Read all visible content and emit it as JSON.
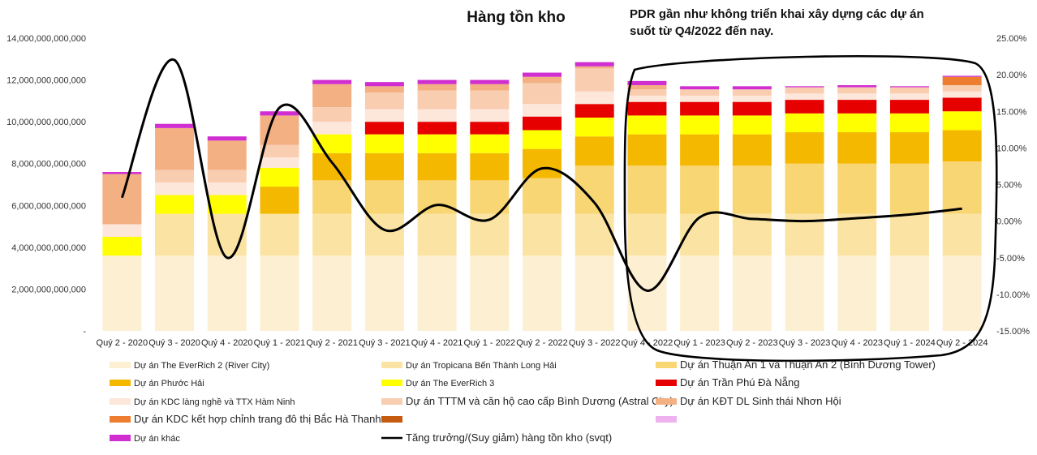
{
  "chart_data": {
    "type": "bar",
    "stacked": true,
    "title": "Hàng tồn kho",
    "annotation": [
      "PDR gần như không triển khai xây dựng các dự án",
      "suốt từ Q4/2022 đến nay."
    ],
    "categories": [
      "Quý 2 - 2020",
      "Quý 3 - 2020",
      "Quý 4 - 2020",
      "Quý 1 - 2021",
      "Quý 2 - 2021",
      "Quý 3 - 2021",
      "Quý 4 - 2021",
      "Quý 1 - 2022",
      "Quý 2 - 2022",
      "Quý 3 - 2022",
      "Quý 4 - 2022",
      "Quý 1 - 2023",
      "Quý 2 - 2023",
      "Quý 3 - 2023",
      "Quý 4 - 2023",
      "Quý 1 - 2024",
      "Quý 2 - 2024"
    ],
    "y_left": {
      "min": 0,
      "max": 14000000000000,
      "step": 2000000000000,
      "tick_labels": [
        "-",
        "2,000,000,000,000",
        "4,000,000,000,000",
        "6,000,000,000,000",
        "8,000,000,000,000",
        "10,000,000,000,000",
        "12,000,000,000,000",
        "14,000,000,000,000"
      ]
    },
    "y_right": {
      "min": -15,
      "max": 25,
      "step": 5,
      "tick_labels": [
        "-15.00%",
        "-10.00%",
        "-5.00%",
        "0.00%",
        "5.00%",
        "10.00%",
        "15.00%",
        "20.00%",
        "25.00%"
      ]
    },
    "series": [
      {
        "name": "Dự án The EverRich 2 (River City)",
        "color": "#fdf0d2",
        "values": [
          3600000000000,
          3600000000000,
          3600000000000,
          3600000000000,
          3600000000000,
          3600000000000,
          3600000000000,
          3600000000000,
          3600000000000,
          3600000000000,
          3600000000000,
          3600000000000,
          3600000000000,
          3600000000000,
          3600000000000,
          3600000000000,
          3600000000000
        ]
      },
      {
        "name": "Dự án Tropicana Bến Thành Long Hải",
        "color": "#fbe4a3",
        "values": [
          0,
          2000000000000,
          2000000000000,
          2000000000000,
          2000000000000,
          2000000000000,
          2000000000000,
          2000000000000,
          2000000000000,
          2000000000000,
          2000000000000,
          2000000000000,
          2000000000000,
          2000000000000,
          2000000000000,
          2000000000000,
          2000000000000
        ]
      },
      {
        "name": "Dự án Thuận An 1 và Thuận An 2 (Bình Dương Tower)",
        "color": "#f8d674",
        "values": [
          0,
          0,
          0,
          0,
          1600000000000,
          1600000000000,
          1600000000000,
          1600000000000,
          1700000000000,
          2300000000000,
          2300000000000,
          2300000000000,
          2300000000000,
          2400000000000,
          2400000000000,
          2400000000000,
          2500000000000
        ]
      },
      {
        "name": "Dự án Phước Hải",
        "color": "#f5b800",
        "values": [
          0,
          0,
          0,
          1300000000000,
          1300000000000,
          1300000000000,
          1300000000000,
          1300000000000,
          1400000000000,
          1400000000000,
          1500000000000,
          1500000000000,
          1500000000000,
          1500000000000,
          1500000000000,
          1500000000000,
          1500000000000
        ]
      },
      {
        "name": "Dự án The EverRich 3",
        "color": "#ffff00",
        "values": [
          900000000000,
          900000000000,
          900000000000,
          900000000000,
          900000000000,
          900000000000,
          900000000000,
          900000000000,
          900000000000,
          900000000000,
          900000000000,
          900000000000,
          900000000000,
          900000000000,
          900000000000,
          900000000000,
          900000000000
        ]
      },
      {
        "name": "Dự án Trần Phú Đà Nẵng",
        "color": "#e60000",
        "values": [
          0,
          0,
          0,
          0,
          0,
          600000000000,
          600000000000,
          600000000000,
          650000000000,
          650000000000,
          650000000000,
          650000000000,
          650000000000,
          650000000000,
          650000000000,
          650000000000,
          650000000000
        ]
      },
      {
        "name": "Dự án KDC làng nghề và TTX Hàm Ninh",
        "color": "#fde6da",
        "values": [
          600000000000,
          600000000000,
          600000000000,
          500000000000,
          600000000000,
          600000000000,
          600000000000,
          600000000000,
          600000000000,
          600000000000,
          300000000000,
          300000000000,
          300000000000,
          300000000000,
          300000000000,
          300000000000,
          300000000000
        ]
      },
      {
        "name": "Dự án TTTM và căn hộ cao cấp Bình Dương (Astral City)",
        "color": "#f9cdb0",
        "values": [
          0,
          600000000000,
          600000000000,
          600000000000,
          700000000000,
          800000000000,
          900000000000,
          900000000000,
          1000000000000,
          1100000000000,
          300000000000,
          300000000000,
          300000000000,
          300000000000,
          300000000000,
          300000000000,
          300000000000
        ]
      },
      {
        "name": "Dự án KĐT DL Sinh thái Nhơn Hội",
        "color": "#f3b083",
        "values": [
          2400000000000,
          2000000000000,
          1400000000000,
          1400000000000,
          1100000000000,
          300000000000,
          300000000000,
          300000000000,
          300000000000,
          100000000000,
          200000000000,
          0,
          0,
          0,
          0,
          0,
          0
        ]
      },
      {
        "name": "Dự án KDC kết hợp chỉnh trang đô thị Bắc Hà Thanh",
        "color": "#ed7d31",
        "values": [
          0,
          0,
          0,
          0,
          0,
          0,
          0,
          0,
          0,
          0,
          0,
          0,
          0,
          0,
          0,
          0,
          400000000000
        ]
      },
      {
        "name": "",
        "color": "#c55a11",
        "values": [
          0,
          0,
          0,
          0,
          0,
          0,
          0,
          0,
          0,
          0,
          0,
          0,
          0,
          0,
          0,
          0,
          0
        ]
      },
      {
        "name": "",
        "color": "#efb2ef",
        "values": [
          0,
          0,
          0,
          0,
          0,
          0,
          0,
          0,
          0,
          0,
          0,
          0,
          0,
          0,
          0,
          0,
          0
        ]
      },
      {
        "name": "Dự án khác",
        "color": "#d02ed0",
        "values": [
          100000000000,
          200000000000,
          200000000000,
          200000000000,
          200000000000,
          200000000000,
          200000000000,
          200000000000,
          200000000000,
          200000000000,
          200000000000,
          150000000000,
          150000000000,
          50000000000,
          100000000000,
          50000000000,
          50000000000
        ]
      }
    ],
    "line_series": {
      "name": "Tăng trưởng/(Suy giảm) hàng tồn kho (svqt)",
      "color": "#000000",
      "axis": "right",
      "values": [
        3.2,
        22.0,
        -5.0,
        15.5,
        8.0,
        -1.2,
        2.2,
        0.2,
        7.2,
        2.5,
        -9.5,
        0.5,
        0.3,
        0.0,
        0.4,
        0.9,
        1.7
      ]
    },
    "grid": false,
    "legend_position": "bottom"
  }
}
